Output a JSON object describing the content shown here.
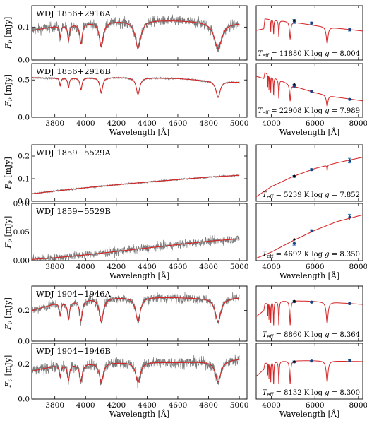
{
  "figure": {
    "spectra_xlabel": "Wavelength [Å]",
    "sed_xlabel": "Wavelength [Å]",
    "ylabel_symbol": "F",
    "ylabel_sub": "ν",
    "ylabel_unit": "[mJy]",
    "colors": {
      "observed": "#7a7a7a",
      "model": "#d62728",
      "synthetic_photometry": "#1f3f7a",
      "photometry_error": "#2a7fbf",
      "observed_photometry": "#000000"
    }
  },
  "chart_data": [
    {
      "type": "line",
      "panel": "spectrum",
      "name": "WDJ 1856+2916A",
      "xlim": [
        3650,
        5050
      ],
      "ylim": [
        0.0,
        0.165
      ],
      "xticks": [
        3800,
        4000,
        4200,
        4400,
        4600,
        4800,
        5000
      ],
      "yticks": [
        0.0,
        0.1
      ],
      "ytick_labels": [
        "0.0",
        "0.1"
      ],
      "continuum": [
        [
          3650,
          0.09
        ],
        [
          3800,
          0.102
        ],
        [
          4000,
          0.113
        ],
        [
          4200,
          0.118
        ],
        [
          4400,
          0.121
        ],
        [
          4600,
          0.12
        ],
        [
          4800,
          0.116
        ],
        [
          5000,
          0.112
        ]
      ],
      "lines": [
        {
          "x": 3835,
          "depth": 0.35,
          "width": 5
        },
        {
          "x": 3889,
          "depth": 0.45,
          "width": 7
        },
        {
          "x": 3970,
          "depth": 0.55,
          "width": 10
        },
        {
          "x": 4102,
          "depth": 0.65,
          "width": 15
        },
        {
          "x": 4341,
          "depth": 0.7,
          "width": 22
        },
        {
          "x": 4862,
          "depth": 0.7,
          "width": 30
        }
      ],
      "noise": 0.015
    },
    {
      "type": "line",
      "panel": "spectrum",
      "name": "WDJ 1856+2916B",
      "xlim": [
        3650,
        5050
      ],
      "ylim": [
        0.0,
        0.72
      ],
      "xticks": [
        3800,
        4000,
        4200,
        4400,
        4600,
        4800,
        5000
      ],
      "xtick_labels": [
        "3800",
        "4000",
        "4200",
        "4400",
        "4600",
        "4800",
        "5000"
      ],
      "yticks": [
        0.0,
        0.5
      ],
      "ytick_labels": [
        "0.0",
        "0.5"
      ],
      "continuum": [
        [
          3650,
          0.53
        ],
        [
          3800,
          0.525
        ],
        [
          4000,
          0.53
        ],
        [
          4200,
          0.535
        ],
        [
          4400,
          0.53
        ],
        [
          4600,
          0.52
        ],
        [
          4800,
          0.49
        ],
        [
          5000,
          0.47
        ]
      ],
      "lines": [
        {
          "x": 3835,
          "depth": 0.2,
          "width": 5
        },
        {
          "x": 3889,
          "depth": 0.25,
          "width": 6
        },
        {
          "x": 3970,
          "depth": 0.3,
          "width": 8
        },
        {
          "x": 4102,
          "depth": 0.38,
          "width": 11
        },
        {
          "x": 4341,
          "depth": 0.42,
          "width": 14
        },
        {
          "x": 4862,
          "depth": 0.45,
          "width": 16
        }
      ],
      "noise": 0.012
    },
    {
      "type": "line",
      "panel": "spectrum",
      "name": "WDJ 1859−5529A",
      "xlim": [
        3650,
        5050
      ],
      "ylim": [
        0.0,
        0.25
      ],
      "xticks": [
        3800,
        4000,
        4200,
        4400,
        4600,
        4800,
        5000
      ],
      "yticks": [
        0.0,
        0.1,
        0.2
      ],
      "ytick_labels": [
        "0.0",
        "0.1",
        "0.2"
      ],
      "continuum": [
        [
          3650,
          0.033
        ],
        [
          3800,
          0.045
        ],
        [
          4000,
          0.06
        ],
        [
          4200,
          0.073
        ],
        [
          4400,
          0.085
        ],
        [
          4600,
          0.096
        ],
        [
          4800,
          0.107
        ],
        [
          5000,
          0.115
        ]
      ],
      "lines": [],
      "noise": 0.004
    },
    {
      "type": "line",
      "panel": "spectrum",
      "name": "WDJ 1859−5529B",
      "xlim": [
        3650,
        5050
      ],
      "ylim": [
        0.0,
        0.1
      ],
      "xticks": [
        3800,
        4000,
        4200,
        4400,
        4600,
        4800,
        5000
      ],
      "xtick_labels": [
        "3800",
        "4000",
        "4200",
        "4400",
        "4600",
        "4800",
        "5000"
      ],
      "yticks": [
        0.0,
        0.05,
        0.1
      ],
      "ytick_labels": [
        "0.00",
        "0.05",
        "0.10"
      ],
      "continuum": [
        [
          3650,
          0.002
        ],
        [
          3800,
          0.005
        ],
        [
          4000,
          0.01
        ],
        [
          4200,
          0.016
        ],
        [
          4400,
          0.022
        ],
        [
          4600,
          0.028
        ],
        [
          4800,
          0.034
        ],
        [
          5000,
          0.038
        ]
      ],
      "lines": [],
      "noise": 0.007
    },
    {
      "type": "line",
      "panel": "spectrum",
      "name": "WDJ 1904−1946A",
      "xlim": [
        3650,
        5050
      ],
      "ylim": [
        0.0,
        0.36
      ],
      "xticks": [
        3800,
        4000,
        4200,
        4400,
        4600,
        4800,
        5000
      ],
      "yticks": [
        0.0,
        0.2
      ],
      "ytick_labels": [
        "0.0",
        "0.2"
      ],
      "continuum": [
        [
          3650,
          0.2
        ],
        [
          3800,
          0.245
        ],
        [
          4000,
          0.275
        ],
        [
          4200,
          0.285
        ],
        [
          4400,
          0.288
        ],
        [
          4600,
          0.285
        ],
        [
          4800,
          0.28
        ],
        [
          5000,
          0.285
        ]
      ],
      "lines": [
        {
          "x": 3835,
          "depth": 0.35,
          "width": 6
        },
        {
          "x": 3889,
          "depth": 0.45,
          "width": 8
        },
        {
          "x": 3970,
          "depth": 0.5,
          "width": 11
        },
        {
          "x": 4102,
          "depth": 0.55,
          "width": 15
        },
        {
          "x": 4341,
          "depth": 0.55,
          "width": 18
        },
        {
          "x": 4862,
          "depth": 0.55,
          "width": 22
        }
      ],
      "noise": 0.03
    },
    {
      "type": "line",
      "panel": "spectrum",
      "name": "WDJ 1904−1946B",
      "xlim": [
        3650,
        5050
      ],
      "ylim": [
        0.0,
        0.32
      ],
      "xticks": [
        3800,
        4000,
        4200,
        4400,
        4600,
        4800,
        5000
      ],
      "xtick_labels": [
        "3800",
        "4000",
        "4200",
        "4400",
        "4600",
        "4800",
        "5000"
      ],
      "yticks": [
        0.0,
        0.2
      ],
      "ytick_labels": [
        "0.0",
        "0.2"
      ],
      "continuum": [
        [
          3650,
          0.16
        ],
        [
          3800,
          0.19
        ],
        [
          4000,
          0.205
        ],
        [
          4200,
          0.21
        ],
        [
          4400,
          0.212
        ],
        [
          4600,
          0.21
        ],
        [
          4800,
          0.215
        ],
        [
          5000,
          0.23
        ]
      ],
      "lines": [
        {
          "x": 3835,
          "depth": 0.35,
          "width": 6
        },
        {
          "x": 3889,
          "depth": 0.45,
          "width": 8
        },
        {
          "x": 3970,
          "depth": 0.5,
          "width": 11
        },
        {
          "x": 4102,
          "depth": 0.55,
          "width": 15
        },
        {
          "x": 4341,
          "depth": 0.55,
          "width": 18
        },
        {
          "x": 4862,
          "depth": 0.55,
          "width": 22
        }
      ],
      "noise": 0.03
    },
    {
      "type": "scatter",
      "panel": "sed",
      "name": "WDJ 1856+2916A SED",
      "xlim": [
        3300,
        8200
      ],
      "ylim": [
        0.0,
        0.165
      ],
      "xticks": [
        4000,
        6000,
        8000
      ],
      "params_text": "Teff = 11880 K log g = 8.004",
      "teff_value": "= 11880 K log",
      "logg_value": "= 8.004",
      "model_continuum": [
        [
          3300,
          0.09
        ],
        [
          3650,
          0.095
        ],
        [
          3700,
          0.125
        ],
        [
          4000,
          0.123
        ],
        [
          5000,
          0.115
        ],
        [
          6000,
          0.105
        ],
        [
          7000,
          0.097
        ],
        [
          8200,
          0.088
        ]
      ],
      "model_lines": [
        {
          "x": 3970,
          "depth": 0.3,
          "width": 10
        },
        {
          "x": 4102,
          "depth": 0.35,
          "width": 15
        },
        {
          "x": 4341,
          "depth": 0.4,
          "width": 20
        },
        {
          "x": 4862,
          "depth": 0.45,
          "width": 35
        },
        {
          "x": 6563,
          "depth": 0.5,
          "width": 50
        }
      ],
      "photometry": [
        {
          "x": 5050,
          "y": 0.117,
          "err": 0.006
        },
        {
          "x": 5850,
          "y": 0.112,
          "err": 0.003
        },
        {
          "x": 7600,
          "y": 0.092,
          "err": 0.004
        }
      ],
      "observed_points": [
        {
          "x": 5050,
          "y": 0.12
        }
      ]
    },
    {
      "type": "scatter",
      "panel": "sed",
      "name": "WDJ 1856+2916B SED",
      "xlim": [
        3300,
        8200
      ],
      "ylim": [
        0.0,
        0.72
      ],
      "xticks": [
        4000,
        6000,
        8000
      ],
      "xtick_labels": [
        "4000",
        "6000",
        "8000"
      ],
      "params_text": "Teff = 22908 K log g = 7.989",
      "teff_value": "= 22908 K log",
      "logg_value": "= 7.989",
      "model_continuum": [
        [
          3300,
          0.55
        ],
        [
          3650,
          0.52
        ],
        [
          3700,
          0.6
        ],
        [
          4000,
          0.55
        ],
        [
          5000,
          0.42
        ],
        [
          6000,
          0.33
        ],
        [
          7000,
          0.27
        ],
        [
          8200,
          0.22
        ]
      ],
      "model_lines": [
        {
          "x": 3835,
          "depth": 0.3,
          "width": 6
        },
        {
          "x": 3889,
          "depth": 0.35,
          "width": 7
        },
        {
          "x": 3970,
          "depth": 0.4,
          "width": 10
        },
        {
          "x": 4102,
          "depth": 0.45,
          "width": 14
        },
        {
          "x": 4341,
          "depth": 0.5,
          "width": 20
        },
        {
          "x": 4862,
          "depth": 0.5,
          "width": 30
        },
        {
          "x": 6563,
          "depth": 0.5,
          "width": 45
        }
      ],
      "photometry": [
        {
          "x": 5050,
          "y": 0.42,
          "err": 0.02
        },
        {
          "x": 5850,
          "y": 0.35,
          "err": 0.01
        },
        {
          "x": 7600,
          "y": 0.24,
          "err": 0.01
        }
      ],
      "observed_points": [
        {
          "x": 5050,
          "y": 0.44
        }
      ]
    },
    {
      "type": "scatter",
      "panel": "sed",
      "name": "WDJ 1859−5529A SED",
      "xlim": [
        3300,
        8200
      ],
      "ylim": [
        0.0,
        0.25
      ],
      "xticks": [
        4000,
        6000,
        8000
      ],
      "params_text": "Teff = 5239 K log g = 7.852",
      "teff_value": "= 5239 K log",
      "logg_value": "= 7.852",
      "model_continuum": [
        [
          3300,
          0.02
        ],
        [
          4000,
          0.065
        ],
        [
          5000,
          0.11
        ],
        [
          6000,
          0.145
        ],
        [
          7000,
          0.17
        ],
        [
          8200,
          0.195
        ]
      ],
      "model_lines": [
        {
          "x": 6563,
          "depth": 0.15,
          "width": 15
        }
      ],
      "photometry": [
        {
          "x": 5050,
          "y": 0.11,
          "err": 0.004
        },
        {
          "x": 5850,
          "y": 0.14,
          "err": 0.004
        },
        {
          "x": 7600,
          "y": 0.18,
          "err": 0.01
        }
      ],
      "observed_points": [
        {
          "x": 5050,
          "y": 0.112
        }
      ]
    },
    {
      "type": "scatter",
      "panel": "sed",
      "name": "WDJ 1859−5529B SED",
      "xlim": [
        3300,
        8200
      ],
      "ylim": [
        0.0,
        0.1
      ],
      "xticks": [
        4000,
        6000,
        8000
      ],
      "xtick_labels": [
        "4000",
        "6000",
        "8000"
      ],
      "params_text": "Teff = 4692 K log g = 8.350",
      "teff_value": "= 4692 K log",
      "logg_value": "= 8.350",
      "model_continuum": [
        [
          3300,
          0.004
        ],
        [
          4000,
          0.015
        ],
        [
          5000,
          0.035
        ],
        [
          6000,
          0.053
        ],
        [
          7000,
          0.068
        ],
        [
          8200,
          0.08
        ]
      ],
      "model_lines": [],
      "photometry": [
        {
          "x": 5050,
          "y": 0.03,
          "err": 0.003
        },
        {
          "x": 5850,
          "y": 0.052,
          "err": 0.002
        },
        {
          "x": 7600,
          "y": 0.076,
          "err": 0.005
        }
      ],
      "observed_points": [
        {
          "x": 5050,
          "y": 0.037
        }
      ]
    },
    {
      "type": "scatter",
      "panel": "sed",
      "name": "WDJ 1904−1946A SED",
      "xlim": [
        3300,
        8200
      ],
      "ylim": [
        0.0,
        0.36
      ],
      "xticks": [
        4000,
        6000,
        8000
      ],
      "params_text": "Teff = 8860 K log g = 8.364",
      "teff_value": "= 8860 K log",
      "logg_value": "= 8.364",
      "model_continuum": [
        [
          3300,
          0.16
        ],
        [
          3650,
          0.2
        ],
        [
          3700,
          0.245
        ],
        [
          4000,
          0.26
        ],
        [
          5000,
          0.265
        ],
        [
          6000,
          0.26
        ],
        [
          7000,
          0.252
        ],
        [
          8200,
          0.24
        ]
      ],
      "model_lines": [
        {
          "x": 3835,
          "depth": 0.35,
          "width": 6
        },
        {
          "x": 3889,
          "depth": 0.45,
          "width": 8
        },
        {
          "x": 3970,
          "depth": 0.55,
          "width": 12
        },
        {
          "x": 4102,
          "depth": 0.6,
          "width": 16
        },
        {
          "x": 4341,
          "depth": 0.6,
          "width": 20
        },
        {
          "x": 4862,
          "depth": 0.6,
          "width": 30
        },
        {
          "x": 6563,
          "depth": 0.55,
          "width": 50
        }
      ],
      "photometry": [
        {
          "x": 5050,
          "y": 0.258,
          "err": 0.006
        },
        {
          "x": 5850,
          "y": 0.255,
          "err": 0.004
        },
        {
          "x": 7600,
          "y": 0.245,
          "err": 0.005
        }
      ],
      "observed_points": [
        {
          "x": 5050,
          "y": 0.262
        }
      ]
    },
    {
      "type": "scatter",
      "panel": "sed",
      "name": "WDJ 1904−1946B SED",
      "xlim": [
        3300,
        8200
      ],
      "ylim": [
        0.0,
        0.32
      ],
      "xticks": [
        4000,
        6000,
        8000
      ],
      "xtick_labels": [
        "4000",
        "6000",
        "8000"
      ],
      "params_text": "Teff = 8132 K log g = 8.300",
      "teff_value": "= 8132 K log",
      "logg_value": "= 8.300",
      "model_continuum": [
        [
          3300,
          0.13
        ],
        [
          3650,
          0.17
        ],
        [
          3700,
          0.205
        ],
        [
          4000,
          0.215
        ],
        [
          5000,
          0.22
        ],
        [
          6000,
          0.22
        ],
        [
          7000,
          0.218
        ],
        [
          8200,
          0.215
        ]
      ],
      "model_lines": [
        {
          "x": 3835,
          "depth": 0.35,
          "width": 6
        },
        {
          "x": 3889,
          "depth": 0.45,
          "width": 8
        },
        {
          "x": 3970,
          "depth": 0.55,
          "width": 12
        },
        {
          "x": 4102,
          "depth": 0.6,
          "width": 16
        },
        {
          "x": 4341,
          "depth": 0.6,
          "width": 20
        },
        {
          "x": 4862,
          "depth": 0.6,
          "width": 30
        },
        {
          "x": 6563,
          "depth": 0.55,
          "width": 50
        }
      ],
      "photometry": [
        {
          "x": 5050,
          "y": 0.213,
          "err": 0.005
        },
        {
          "x": 5850,
          "y": 0.218,
          "err": 0.003
        },
        {
          "x": 7600,
          "y": 0.22,
          "err": 0.005
        }
      ],
      "observed_points": [
        {
          "x": 5050,
          "y": 0.215
        }
      ]
    }
  ]
}
